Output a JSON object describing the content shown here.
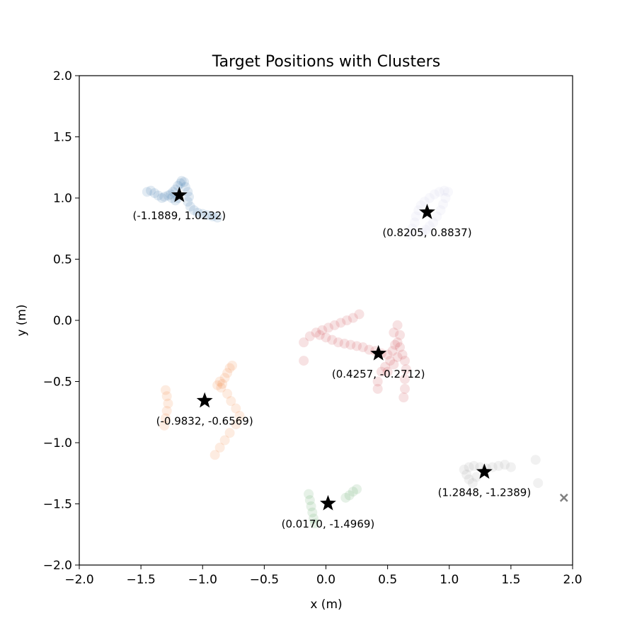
{
  "chart_data": {
    "type": "scatter",
    "title": "Target Positions with Clusters",
    "xlabel": "x (m)",
    "ylabel": "y (m)",
    "xlim": [
      -2.0,
      2.0
    ],
    "ylim": [
      -2.0,
      2.0
    ],
    "xticks": [
      -2.0,
      -1.5,
      -1.0,
      -0.5,
      0.0,
      0.5,
      1.0,
      1.5,
      2.0
    ],
    "yticks": [
      -2.0,
      -1.5,
      -1.0,
      -0.5,
      0.0,
      0.5,
      1.0,
      1.5,
      2.0
    ],
    "xtick_labels": [
      "−2.0",
      "−1.5",
      "−1.0",
      "−0.5",
      "0.0",
      "0.5",
      "1.0",
      "1.5",
      "2.0"
    ],
    "ytick_labels": [
      "−2.0",
      "−1.5",
      "−1.0",
      "−0.5",
      "0.0",
      "0.5",
      "1.0",
      "1.5",
      "2.0"
    ],
    "grid": false,
    "legend": false,
    "series": [
      {
        "color": "#2f6ea8",
        "centroid": [
          -1.1889,
          1.0232
        ],
        "label": "(-1.1889, 1.0232)",
        "points": [
          [
            -1.45,
            1.05
          ],
          [
            -1.42,
            1.06
          ],
          [
            -1.39,
            1.04
          ],
          [
            -1.36,
            1.02
          ],
          [
            -1.33,
            1.0
          ],
          [
            -1.31,
            1.01
          ],
          [
            -1.28,
            1.02
          ],
          [
            -1.26,
            1.03
          ],
          [
            -1.24,
            1.05
          ],
          [
            -1.22,
            1.07
          ],
          [
            -1.2,
            1.1
          ],
          [
            -1.18,
            1.12
          ],
          [
            -1.17,
            1.14
          ],
          [
            -1.15,
            1.13
          ],
          [
            -1.14,
            1.09
          ],
          [
            -1.12,
            1.05
          ],
          [
            -1.11,
            1.01
          ],
          [
            -1.12,
            0.97
          ],
          [
            -1.1,
            0.93
          ],
          [
            -1.07,
            0.9
          ],
          [
            -1.04,
            0.88
          ],
          [
            -1.0,
            0.87
          ],
          [
            -0.96,
            0.86
          ],
          [
            -0.92,
            0.85
          ],
          [
            -0.88,
            0.84
          ],
          [
            -1.2,
            1.0
          ],
          [
            -1.22,
            0.98
          ],
          [
            -1.25,
            1.0
          ]
        ]
      },
      {
        "color": "#cdcbe8",
        "centroid": [
          0.8205,
          0.8837
        ],
        "label": "(0.8205, 0.8837)",
        "points": [
          [
            0.68,
            0.7
          ],
          [
            0.7,
            0.75
          ],
          [
            0.72,
            0.8
          ],
          [
            0.73,
            0.85
          ],
          [
            0.75,
            0.9
          ],
          [
            0.77,
            0.94
          ],
          [
            0.8,
            0.97
          ],
          [
            0.84,
            1.0
          ],
          [
            0.88,
            1.03
          ],
          [
            0.92,
            1.05
          ],
          [
            0.96,
            1.06
          ],
          [
            0.99,
            1.05
          ],
          [
            0.97,
            1.0
          ],
          [
            0.95,
            0.95
          ],
          [
            0.93,
            0.9
          ],
          [
            0.9,
            0.85
          ],
          [
            0.87,
            0.8
          ],
          [
            0.84,
            0.77
          ],
          [
            0.81,
            0.74
          ],
          [
            0.78,
            0.72
          ]
        ]
      },
      {
        "color": "#c8323c",
        "centroid": [
          0.4257,
          -0.2712
        ],
        "label": "(0.4257, -0.2712)",
        "points": [
          [
            -0.18,
            -0.18
          ],
          [
            -0.13,
            -0.13
          ],
          [
            -0.08,
            -0.1
          ],
          [
            -0.03,
            -0.08
          ],
          [
            0.02,
            -0.06
          ],
          [
            0.07,
            -0.04
          ],
          [
            0.12,
            -0.02
          ],
          [
            0.17,
            0.0
          ],
          [
            0.22,
            0.02
          ],
          [
            0.27,
            0.05
          ],
          [
            -0.05,
            -0.12
          ],
          [
            0.0,
            -0.14
          ],
          [
            0.05,
            -0.16
          ],
          [
            0.1,
            -0.18
          ],
          [
            0.15,
            -0.19
          ],
          [
            0.2,
            -0.2
          ],
          [
            0.25,
            -0.21
          ],
          [
            0.3,
            -0.22
          ],
          [
            0.35,
            -0.24
          ],
          [
            0.4,
            -0.25
          ],
          [
            0.45,
            -0.27
          ],
          [
            0.5,
            -0.28
          ],
          [
            0.54,
            -0.25
          ],
          [
            0.56,
            -0.2
          ],
          [
            0.58,
            -0.18
          ],
          [
            0.6,
            -0.22
          ],
          [
            0.62,
            -0.28
          ],
          [
            0.64,
            -0.33
          ],
          [
            0.65,
            -0.4
          ],
          [
            0.64,
            -0.48
          ],
          [
            0.64,
            -0.56
          ],
          [
            0.63,
            -0.63
          ],
          [
            0.58,
            -0.3
          ],
          [
            0.55,
            -0.36
          ],
          [
            0.52,
            -0.33
          ],
          [
            0.48,
            -0.38
          ],
          [
            0.45,
            -0.42
          ],
          [
            0.42,
            -0.5
          ],
          [
            0.42,
            -0.56
          ],
          [
            0.55,
            -0.1
          ],
          [
            0.58,
            -0.04
          ],
          [
            0.5,
            -0.42
          ],
          [
            0.6,
            -0.12
          ],
          [
            -0.18,
            -0.33
          ]
        ]
      },
      {
        "color": "#f07a2e",
        "centroid": [
          -0.9832,
          -0.6569
        ],
        "label": "(-0.9832, -0.6569)",
        "points": [
          [
            -1.31,
            -0.86
          ],
          [
            -1.3,
            -0.8
          ],
          [
            -1.29,
            -0.74
          ],
          [
            -1.28,
            -0.68
          ],
          [
            -1.29,
            -0.62
          ],
          [
            -1.3,
            -0.57
          ],
          [
            -0.86,
            -0.5
          ],
          [
            -0.85,
            -0.55
          ],
          [
            -0.84,
            -0.52
          ],
          [
            -0.82,
            -0.47
          ],
          [
            -0.8,
            -0.43
          ],
          [
            -0.78,
            -0.39
          ],
          [
            -0.76,
            -0.37
          ],
          [
            -0.88,
            -0.53
          ],
          [
            -0.8,
            -0.6
          ],
          [
            -0.77,
            -0.66
          ],
          [
            -0.73,
            -0.72
          ],
          [
            -0.7,
            -0.78
          ],
          [
            -0.73,
            -0.85
          ],
          [
            -0.78,
            -0.92
          ],
          [
            -0.82,
            -0.98
          ],
          [
            -0.86,
            -1.04
          ],
          [
            -0.9,
            -1.1
          ]
        ]
      },
      {
        "color": "#4f9a52",
        "centroid": [
          0.017,
          -1.4969
        ],
        "label": "(0.0170, -1.4969)",
        "points": [
          [
            -0.14,
            -1.42
          ],
          [
            -0.13,
            -1.47
          ],
          [
            -0.12,
            -1.52
          ],
          [
            -0.11,
            -1.57
          ],
          [
            -0.1,
            -1.62
          ],
          [
            -0.09,
            -1.66
          ],
          [
            0.16,
            -1.45
          ],
          [
            0.19,
            -1.43
          ],
          [
            0.22,
            -1.4
          ],
          [
            0.25,
            -1.38
          ]
        ]
      },
      {
        "color": "#9a9a9a",
        "centroid": [
          1.2848,
          -1.2389
        ],
        "label": "(1.2848, -1.2389)",
        "points": [
          [
            1.12,
            -1.22
          ],
          [
            1.16,
            -1.2
          ],
          [
            1.2,
            -1.19
          ],
          [
            1.25,
            -1.2
          ],
          [
            1.3,
            -1.21
          ],
          [
            1.35,
            -1.2
          ],
          [
            1.4,
            -1.19
          ],
          [
            1.45,
            -1.18
          ],
          [
            1.5,
            -1.2
          ],
          [
            1.14,
            -1.26
          ],
          [
            1.16,
            -1.3
          ],
          [
            1.19,
            -1.33
          ],
          [
            1.22,
            -1.28
          ],
          [
            1.7,
            -1.14
          ],
          [
            1.72,
            -1.33
          ]
        ]
      }
    ],
    "outlier": {
      "x": 1.93,
      "y": -1.45,
      "color": "#808080"
    }
  }
}
